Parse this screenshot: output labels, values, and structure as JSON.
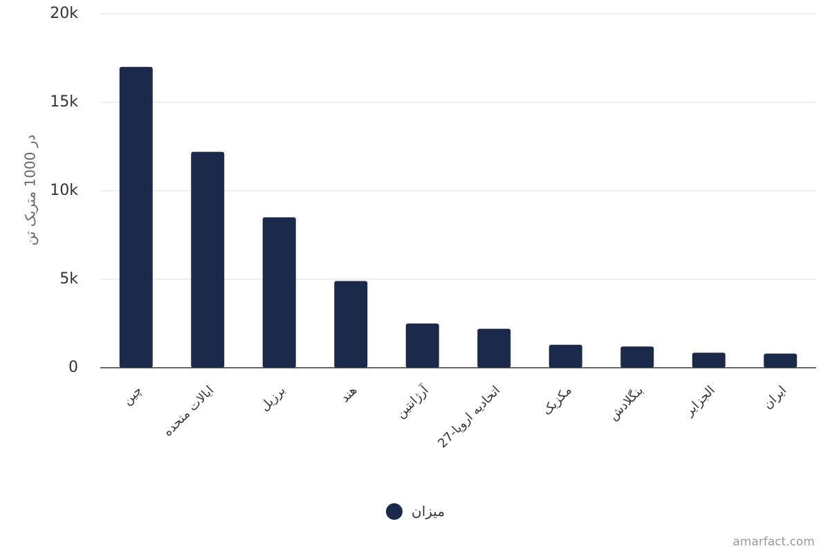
{
  "chart_data": {
    "type": "bar",
    "y_axis_label": "در 1000 متریک تن",
    "categories": [
      "چین",
      "ایالات متحده",
      "برزیل",
      "هند",
      "آرژانتین",
      "اتحادیه اروپا-27",
      "مکزیک",
      "بنگلادش",
      "الجزایر",
      "ایران"
    ],
    "series": [
      {
        "name": "میزان",
        "color": "#1b2a4a",
        "values": [
          17000,
          12200,
          8500,
          4900,
          2500,
          2200,
          1300,
          1200,
          850,
          800
        ]
      }
    ],
    "ylim": [
      0,
      20000
    ],
    "yticks": [
      0,
      {
        "value": 5000,
        "label": "5k"
      },
      {
        "value": 10000,
        "label": "10k"
      },
      {
        "value": 15000,
        "label": "15k"
      },
      {
        "value": 20000,
        "label": "20k"
      }
    ],
    "grid": true,
    "legend": "bottom",
    "credit": "amarfact.com"
  }
}
